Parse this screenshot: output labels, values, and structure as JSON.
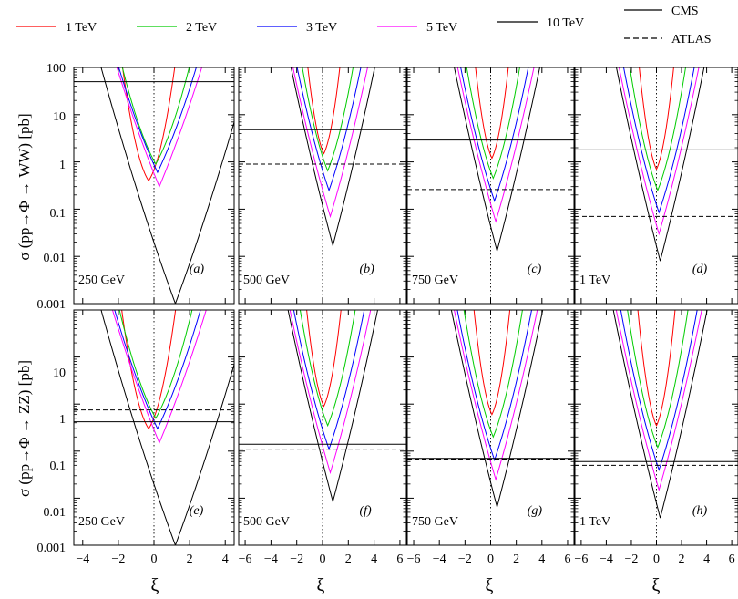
{
  "legend": {
    "energies": [
      {
        "label": "1 TeV",
        "color": "#ff0000"
      },
      {
        "label": "2 TeV",
        "color": "#00cc00"
      },
      {
        "label": "3 TeV",
        "color": "#0000ff"
      },
      {
        "label": "5 TeV",
        "color": "#ff00ff"
      },
      {
        "label": "10 TeV",
        "color": "#000000"
      }
    ],
    "experiments": [
      {
        "label": "CMS",
        "style": "solid"
      },
      {
        "label": "ATLAS",
        "style": "dashed"
      }
    ]
  },
  "ylabels": {
    "top": "σ (pp→Φ → WW) [pb]",
    "bottom": "σ (pp→Φ → ZZ) [pb]"
  },
  "xlabel": "ξ",
  "yticks": [
    "100",
    "10",
    "1",
    "0.1",
    "0.01",
    "0.001"
  ],
  "yticks_bottom": [
    "10",
    "1",
    "0.1",
    "0.01",
    "0.001"
  ],
  "chart_data": {
    "type": "line",
    "yscale": "log",
    "ylim": [
      0.001,
      100
    ],
    "rows": [
      "WW",
      "ZZ"
    ],
    "panels": [
      {
        "id": "(a)",
        "mass": "250 GeV",
        "channel": "WW",
        "xlim": [
          -4.5,
          4.5
        ],
        "xticks": [
          -4,
          -2,
          0,
          2,
          4
        ],
        "cms": 50,
        "atlas": null,
        "curves": [
          {
            "energy": "1 TeV",
            "min": 0.4,
            "xmin": -0.3
          },
          {
            "energy": "2 TeV",
            "min": 0.9,
            "xmin": 0.1
          },
          {
            "energy": "3 TeV",
            "min": 0.6,
            "xmin": 0.2
          },
          {
            "energy": "5 TeV",
            "min": 0.3,
            "xmin": 0.3
          },
          {
            "energy": "10 TeV",
            "min": 0.001,
            "xmin": 1.2
          }
        ]
      },
      {
        "id": "(b)",
        "mass": "500 GeV",
        "channel": "WW",
        "xlim": [
          -6.5,
          6.5
        ],
        "xticks": [
          -6,
          -4,
          -2,
          0,
          2,
          4,
          6
        ],
        "cms": 4.8,
        "atlas": 0.9,
        "curves": [
          {
            "energy": "1 TeV",
            "min": 1.5,
            "xmin": 0.1
          },
          {
            "energy": "2 TeV",
            "min": 0.65,
            "xmin": 0.4
          },
          {
            "energy": "3 TeV",
            "min": 0.25,
            "xmin": 0.5
          },
          {
            "energy": "5 TeV",
            "min": 0.07,
            "xmin": 0.6
          },
          {
            "energy": "10 TeV",
            "min": 0.017,
            "xmin": 0.8
          }
        ]
      },
      {
        "id": "(c)",
        "mass": "750 GeV",
        "channel": "WW",
        "xlim": [
          -6.5,
          6.5
        ],
        "xticks": [
          -6,
          -4,
          -2,
          0,
          2,
          4,
          6
        ],
        "cms": 2.9,
        "atlas": 0.26,
        "curves": [
          {
            "energy": "1 TeV",
            "min": 1.2,
            "xmin": 0.1
          },
          {
            "energy": "2 TeV",
            "min": 0.45,
            "xmin": 0.2
          },
          {
            "energy": "3 TeV",
            "min": 0.15,
            "xmin": 0.3
          },
          {
            "energy": "5 TeV",
            "min": 0.055,
            "xmin": 0.4
          },
          {
            "energy": "10 TeV",
            "min": 0.013,
            "xmin": 0.5
          }
        ]
      },
      {
        "id": "(d)",
        "mass": "1 TeV",
        "channel": "WW",
        "xlim": [
          -6.5,
          6.5
        ],
        "xticks": [
          -6,
          -4,
          -2,
          0,
          2,
          4,
          6
        ],
        "cms": 1.8,
        "atlas": 0.07,
        "curves": [
          {
            "energy": "1 TeV",
            "min": 0.7,
            "xmin": 0.0
          },
          {
            "energy": "2 TeV",
            "min": 0.25,
            "xmin": 0.1
          },
          {
            "energy": "3 TeV",
            "min": 0.085,
            "xmin": 0.2
          },
          {
            "energy": "5 TeV",
            "min": 0.03,
            "xmin": 0.2
          },
          {
            "energy": "10 TeV",
            "min": 0.008,
            "xmin": 0.3
          }
        ]
      },
      {
        "id": "(e)",
        "mass": "250 GeV",
        "channel": "ZZ",
        "xlim": [
          -4.5,
          4.5
        ],
        "xticks": [
          -4,
          -2,
          0,
          2,
          4
        ],
        "cms": 0.42,
        "atlas": 0.75,
        "curves": [
          {
            "energy": "1 TeV",
            "min": 0.3,
            "xmin": -0.3
          },
          {
            "energy": "2 TeV",
            "min": 0.5,
            "xmin": 0.1
          },
          {
            "energy": "3 TeV",
            "min": 0.3,
            "xmin": 0.2
          },
          {
            "energy": "5 TeV",
            "min": 0.15,
            "xmin": 0.3
          },
          {
            "energy": "10 TeV",
            "min": 0.001,
            "xmin": 1.2
          }
        ]
      },
      {
        "id": "(f)",
        "mass": "500 GeV",
        "channel": "ZZ",
        "xlim": [
          -6.5,
          6.5
        ],
        "xticks": [
          -6,
          -4,
          -2,
          0,
          2,
          4,
          6
        ],
        "cms": 0.14,
        "atlas": 0.11,
        "curves": [
          {
            "energy": "1 TeV",
            "min": 0.9,
            "xmin": 0.1
          },
          {
            "energy": "2 TeV",
            "min": 0.35,
            "xmin": 0.4
          },
          {
            "energy": "3 TeV",
            "min": 0.11,
            "xmin": 0.5
          },
          {
            "energy": "5 TeV",
            "min": 0.035,
            "xmin": 0.6
          },
          {
            "energy": "10 TeV",
            "min": 0.0085,
            "xmin": 0.8
          }
        ]
      },
      {
        "id": "(g)",
        "mass": "750 GeV",
        "channel": "ZZ",
        "xlim": [
          -6.5,
          6.5
        ],
        "xticks": [
          -6,
          -4,
          -2,
          0,
          2,
          4,
          6
        ],
        "cms": 0.07,
        "atlas": 0.068,
        "curves": [
          {
            "energy": "1 TeV",
            "min": 0.6,
            "xmin": 0.1
          },
          {
            "energy": "2 TeV",
            "min": 0.2,
            "xmin": 0.2
          },
          {
            "energy": "3 TeV",
            "min": 0.065,
            "xmin": 0.3
          },
          {
            "energy": "5 TeV",
            "min": 0.025,
            "xmin": 0.4
          },
          {
            "energy": "10 TeV",
            "min": 0.0065,
            "xmin": 0.5
          }
        ]
      },
      {
        "id": "(h)",
        "mass": "1 TeV",
        "channel": "ZZ",
        "xlim": [
          -6.5,
          6.5
        ],
        "xticks": [
          -6,
          -4,
          -2,
          0,
          2,
          4,
          6
        ],
        "cms": 0.06,
        "atlas": 0.05,
        "curves": [
          {
            "energy": "1 TeV",
            "min": 0.35,
            "xmin": 0.0
          },
          {
            "energy": "2 TeV",
            "min": 0.12,
            "xmin": 0.1
          },
          {
            "energy": "3 TeV",
            "min": 0.04,
            "xmin": 0.2
          },
          {
            "energy": "5 TeV",
            "min": 0.015,
            "xmin": 0.2
          },
          {
            "energy": "10 TeV",
            "min": 0.0038,
            "xmin": 0.3
          }
        ]
      }
    ]
  }
}
